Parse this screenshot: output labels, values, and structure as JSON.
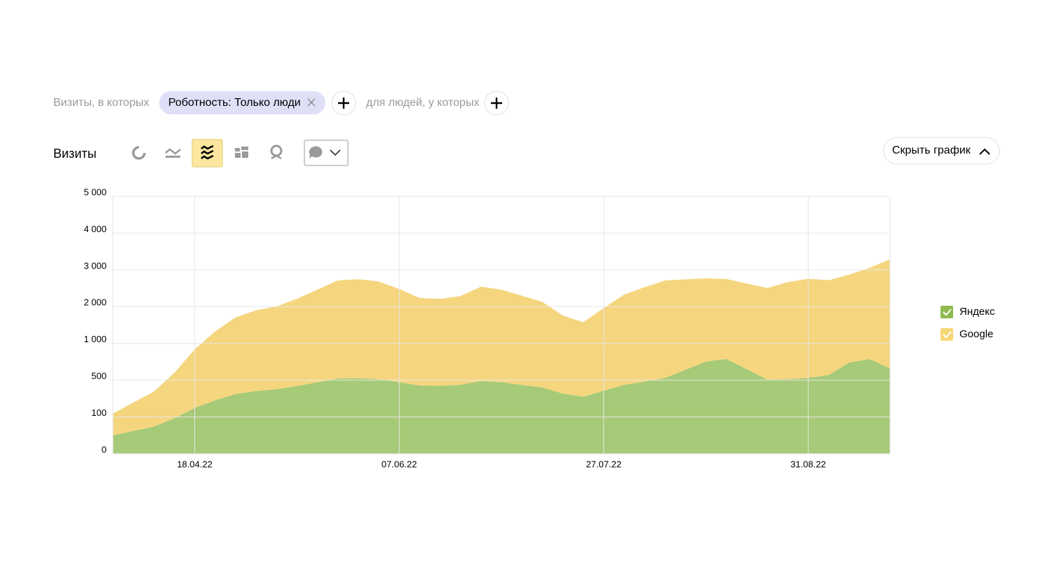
{
  "filters": {
    "prefix": "Визиты, в которых",
    "chip": "Роботность: Только люди",
    "suffix": "для людей, у которых"
  },
  "toolbar": {
    "metric": "Визиты",
    "hide_chart": "Скрыть график"
  },
  "chart_data": {
    "type": "area",
    "stacked": true,
    "categories": [
      null,
      null,
      null,
      null,
      "18.04.22",
      null,
      null,
      null,
      null,
      null,
      null,
      null,
      null,
      null,
      "07.06.22",
      null,
      null,
      null,
      null,
      null,
      null,
      null,
      null,
      null,
      "27.07.22",
      null,
      null,
      null,
      null,
      null,
      null,
      null,
      null,
      null,
      "31.08.22",
      null,
      null,
      null,
      null
    ],
    "series": [
      {
        "name": "Яндекс",
        "color": "#a6ca77",
        "legend_color": "#8fbb4f",
        "values": [
          50,
          62,
          74,
          96,
          198,
          281,
          349,
          382,
          402,
          436,
          477,
          523,
          527,
          512,
          478,
          442,
          438,
          451,
          491,
          478,
          449,
          421,
          354,
          320,
          386,
          450,
          485,
          530,
          641,
          753,
          789,
          649,
          509,
          513,
          531,
          570,
          739,
          789,
          660
        ]
      },
      {
        "name": "Google",
        "color": "#f5d67f",
        "legend_color": "#f7d775",
        "values": [
          88,
          195,
          301,
          503,
          723,
          1044,
          1362,
          1518,
          1604,
          1777,
          1986,
          2190,
          2219,
          2173,
          2001,
          1795,
          1774,
          1837,
          2053,
          1984,
          1847,
          1708,
          1404,
          1257,
          1576,
          1877,
          2044,
          2183,
          2101,
          2016,
          1963,
          1980,
          1997,
          2154,
          2229,
          2149,
          2132,
          2265,
          2628
        ]
      }
    ],
    "ylim": [
      0,
      5000
    ],
    "yticks": [
      0,
      100,
      500,
      {
        "value": 1000,
        "label": "1 000"
      },
      {
        "value": 2000,
        "label": "2 000"
      },
      {
        "value": 3000,
        "label": "3 000"
      },
      {
        "value": 4000,
        "label": "4 000"
      },
      {
        "value": 5000,
        "label": "5 000"
      }
    ],
    "grid": true,
    "legend": "right"
  }
}
